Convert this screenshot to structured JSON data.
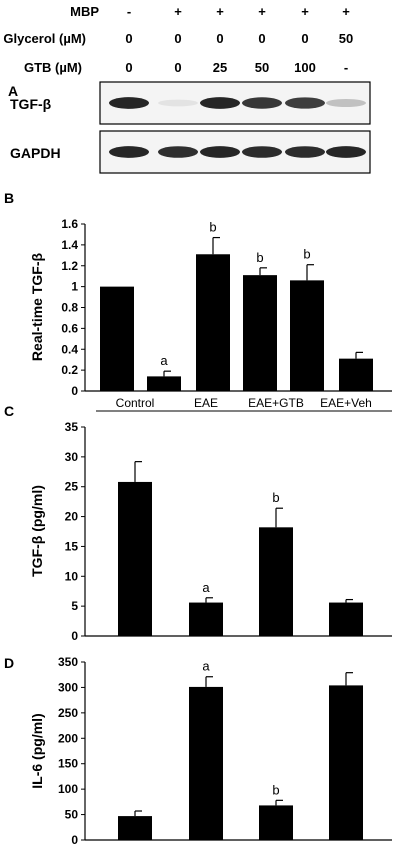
{
  "blot": {
    "panel_label": "A",
    "conditions": [
      {
        "label": "MBP",
        "values": [
          "-",
          "+",
          "+",
          "+",
          "+",
          "+"
        ]
      },
      {
        "label": "Glycerol (µM)",
        "values": [
          "0",
          "0",
          "0",
          "0",
          "0",
          "50"
        ]
      },
      {
        "label": "GTB (µM)",
        "values": [
          "0",
          "0",
          "25",
          "50",
          "100",
          "-"
        ]
      }
    ],
    "bands": [
      {
        "label": "TGF-β",
        "intensities": [
          0.95,
          0.12,
          0.95,
          0.9,
          0.88,
          0.35
        ]
      },
      {
        "label": "GAPDH",
        "intensities": [
          0.95,
          0.92,
          0.95,
          0.93,
          0.93,
          0.95
        ]
      }
    ]
  },
  "chart_data": [
    {
      "panel_label": "B",
      "type": "bar",
      "title": "",
      "xlabel": "",
      "ylabel": "Real-time TGF-β",
      "ylim": [
        0,
        1.6
      ],
      "yticks": [
        0,
        0.2,
        0.4,
        0.6,
        0.8,
        1,
        1.2,
        1.4,
        1.6
      ],
      "ytick_labels": [
        "0",
        "0.2",
        "0.4",
        "0.6",
        "0.8",
        "1",
        "1.2",
        "1.4",
        "1.6"
      ],
      "categories": [
        "",
        "",
        "",
        "",
        "",
        ""
      ],
      "values": [
        1.0,
        0.14,
        1.31,
        1.11,
        1.06,
        0.31
      ],
      "errors": [
        0.0,
        0.05,
        0.16,
        0.07,
        0.15,
        0.06
      ],
      "annotations": [
        "",
        "a",
        "b",
        "b",
        "b",
        ""
      ],
      "grid": false
    },
    {
      "panel_label": "C",
      "type": "bar",
      "title": "",
      "xlabel": "",
      "ylabel": "TGF-β (pg/ml)",
      "ylim": [
        0,
        35
      ],
      "yticks": [
        0,
        5,
        10,
        15,
        20,
        25,
        30,
        35
      ],
      "ytick_labels": [
        "0",
        "5",
        "10",
        "15",
        "20",
        "25",
        "30",
        "35"
      ],
      "categories": [
        "Control",
        "EAE",
        "EAE+GTB",
        "EAE+Veh"
      ],
      "values": [
        25.8,
        5.6,
        18.2,
        5.6
      ],
      "errors": [
        3.4,
        0.8,
        3.2,
        0.5
      ],
      "annotations": [
        "",
        "a",
        "b",
        ""
      ],
      "grid": false
    },
    {
      "panel_label": "D",
      "type": "bar",
      "title": "",
      "xlabel": "",
      "ylabel": "IL-6 (pg/ml)",
      "ylim": [
        0,
        350
      ],
      "yticks": [
        0,
        50,
        100,
        150,
        200,
        250,
        300,
        350
      ],
      "ytick_labels": [
        "0",
        "50",
        "100",
        "150",
        "200",
        "250",
        "300",
        "350"
      ],
      "categories": [
        "Control",
        "EAE",
        "EAE+GTB",
        "EAE+Veh"
      ],
      "values": [
        47,
        301,
        68,
        304
      ],
      "errors": [
        10,
        20,
        10,
        25
      ],
      "annotations": [
        "",
        "a",
        "b",
        ""
      ],
      "grid": false
    }
  ]
}
